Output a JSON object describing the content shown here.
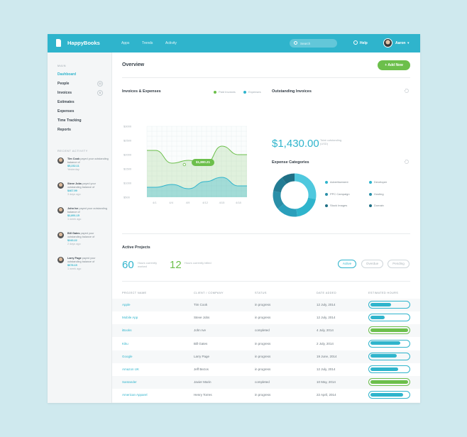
{
  "brand": "HappyBooks",
  "nav": [
    "Apps",
    "Trends",
    "Activity"
  ],
  "search_placeholder": "Search",
  "help_label": "Help",
  "user_name": "Aaron",
  "sidebar": {
    "menu_heading": "MAIN",
    "items": [
      {
        "label": "Dashboard",
        "active": true,
        "badge": ""
      },
      {
        "label": "People",
        "active": false,
        "badge": "11"
      },
      {
        "label": "Invoices",
        "active": false,
        "badge": "6"
      },
      {
        "label": "Estimates",
        "active": false,
        "badge": ""
      },
      {
        "label": "Expenses",
        "active": false,
        "badge": ""
      },
      {
        "label": "Time Tracking",
        "active": false,
        "badge": ""
      },
      {
        "label": "Reports",
        "active": false,
        "badge": ""
      }
    ],
    "activity_heading": "RECENT ACTIVITY",
    "activity": [
      {
        "name": "Tim Cook",
        "text": "payed your outstanding balance of",
        "amount": "$5,232.11",
        "time": "Yesterday"
      },
      {
        "name": "Steve Jobs",
        "text": "payed your outstanding balance of",
        "amount": "$467.99",
        "time": "3 days ago"
      },
      {
        "name": "John Ive",
        "text": "payed your outstanding balance of",
        "amount": "$2,891.15",
        "time": "1 week ago"
      },
      {
        "name": "Bill Gates",
        "text": "payed your outstanding balance of",
        "amount": "$243.22",
        "time": "2 days ago"
      },
      {
        "name": "Larry Page",
        "text": "payed your outstanding balance of",
        "amount": "$678.15",
        "time": "1 week ago"
      }
    ]
  },
  "main": {
    "title": "Overview",
    "add_button": "+ Add New",
    "invoices_expenses_title": "Invoices & Expenses",
    "legend": [
      "Paid Invoices",
      "Expenses"
    ],
    "tooltip": "$1,800.21",
    "outstanding_title": "Outstanding Invoices",
    "outstanding_amount": "$1,430.00",
    "outstanding_caption": "Total outstanding (USD)",
    "expense_categories_title": "Expense Categories",
    "categories": [
      {
        "label": "Advertisement",
        "color": "#2fb4cc"
      },
      {
        "label": "Developer",
        "color": "#2fb4cc"
      },
      {
        "label": "PPC Campaign",
        "color": "#2a8fa8"
      },
      {
        "label": "Hosting",
        "color": "#2a8fa8"
      },
      {
        "label": "Stock Images",
        "color": "#1f6f85"
      },
      {
        "label": "Domain",
        "color": "#1f6f85"
      }
    ],
    "active_projects_title": "Active Projects",
    "active_count": "60",
    "active_caption": "Hours currently worked",
    "hours_count": "12",
    "hours_caption": "Hours currently billed",
    "filters": [
      "Active",
      "Overdue",
      "Pending"
    ],
    "table_headers": [
      "PROJECT NAME",
      "CLIENT / COMPANY",
      "STATUS",
      "DATE ADDED",
      "ESTIMATED HOURS"
    ],
    "rows": [
      {
        "project": "Apple",
        "client": "Tim Cook",
        "status": "in progress",
        "date": "12 July, 2014",
        "progress": 0.55,
        "complete": false
      },
      {
        "project": "Mobile App",
        "client": "Steve Jobs",
        "status": "in progress",
        "date": "12 July, 2014",
        "progress": 0.38,
        "complete": false
      },
      {
        "project": "iBooks",
        "client": "John Ive",
        "status": "completed",
        "date": "4 July, 2014",
        "progress": 1.0,
        "complete": true
      },
      {
        "project": "Kiku",
        "client": "Bill Gates",
        "status": "in progress",
        "date": "2 July, 2014",
        "progress": 0.8,
        "complete": false
      },
      {
        "project": "Google",
        "client": "Larry Page",
        "status": "in progress",
        "date": "19 June, 2014",
        "progress": 0.7,
        "complete": false
      },
      {
        "project": "Amazon UK",
        "client": "Jeff Bezos",
        "status": "in progress",
        "date": "12 July, 2014",
        "progress": 0.75,
        "complete": false
      },
      {
        "project": "Santander",
        "client": "Javier Marin",
        "status": "completed",
        "date": "10 May, 2014",
        "progress": 1.0,
        "complete": true
      },
      {
        "project": "American Apparel",
        "client": "Henry Torres",
        "status": "in progress",
        "date": "22 April, 2014",
        "progress": 0.88,
        "complete": false
      },
      {
        "project": "Dribbble",
        "client": "John Stewart",
        "status": "in progress",
        "date": "2 April, 2014",
        "progress": 0.45,
        "complete": false
      },
      {
        "project": "Kickstarter",
        "client": "Eric Watkins",
        "status": "in progress",
        "date": "1 March, 2014",
        "progress": 0.6,
        "complete": false
      }
    ]
  },
  "chart_data": [
    {
      "type": "area",
      "title": "Invoices & Expenses",
      "x": [
        "4/1",
        "4/4",
        "4/9",
        "4/12",
        "4/15",
        "4/18"
      ],
      "y_ticks": [
        "$3000",
        "$2500",
        "$2000",
        "$1500",
        "$1000",
        "$500"
      ],
      "ylim": [
        500,
        3000
      ],
      "series": [
        {
          "name": "Paid Invoices",
          "color": "#6cbf4b",
          "values": [
            2150,
            1700,
            1800,
            1650,
            2300,
            2000
          ]
        },
        {
          "name": "Expenses",
          "color": "#2fb4cc",
          "values": [
            850,
            950,
            800,
            1050,
            1200,
            900
          ]
        }
      ]
    },
    {
      "type": "pie",
      "title": "Expense Categories",
      "categories": [
        "Advertisement",
        "Developer",
        "PPC Campaign",
        "Hosting",
        "Stock Images",
        "Domain"
      ],
      "values": [
        28,
        20,
        16,
        14,
        12,
        10
      ],
      "colors": [
        "#4fc8de",
        "#2fb4cc",
        "#2a9fbb",
        "#2a8fa8",
        "#237c94",
        "#1f6f85"
      ]
    }
  ]
}
